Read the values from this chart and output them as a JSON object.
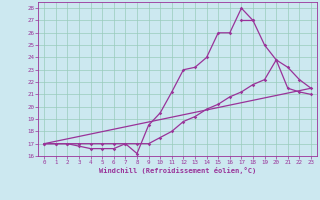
{
  "xlabel": "Windchill (Refroidissement éolien,°C)",
  "xlim": [
    -0.5,
    23.5
  ],
  "ylim": [
    16,
    28.5
  ],
  "yticks": [
    16,
    17,
    18,
    19,
    20,
    21,
    22,
    23,
    24,
    25,
    26,
    27,
    28
  ],
  "xticks": [
    0,
    1,
    2,
    3,
    4,
    5,
    6,
    7,
    8,
    9,
    10,
    11,
    12,
    13,
    14,
    15,
    16,
    17,
    18,
    19,
    20,
    21,
    22,
    23
  ],
  "bg_color": "#cce8f0",
  "line_color": "#993399",
  "grid_color": "#99ccbb",
  "line1_x": [
    0,
    1,
    2,
    3,
    4,
    5,
    6,
    7,
    8,
    9,
    10,
    11,
    12,
    13,
    14,
    15,
    16,
    17,
    18
  ],
  "line1_y": [
    17,
    17,
    17,
    16.8,
    16.6,
    16.6,
    16.6,
    17.0,
    16.2,
    18.5,
    19.5,
    21.2,
    23.0,
    23.2,
    24.0,
    26.0,
    26.0,
    28.0,
    27.0
  ],
  "line2_x": [
    0,
    23
  ],
  "line2_y": [
    17,
    21.5
  ],
  "line3_x": [
    0,
    1,
    2,
    3,
    4,
    5,
    6,
    7,
    8,
    9,
    10,
    11,
    12,
    13,
    14,
    15,
    16,
    17,
    18,
    19,
    20,
    21,
    22,
    23
  ],
  "line3_y": [
    17,
    17,
    17,
    17,
    17,
    17,
    17,
    17,
    17,
    17,
    17.5,
    18.0,
    18.8,
    19.2,
    19.8,
    20.2,
    20.8,
    21.2,
    21.8,
    22.2,
    23.8,
    21.5,
    21.2,
    21.0
  ],
  "line4_x": [
    17,
    18,
    19,
    20,
    21,
    22,
    23
  ],
  "line4_y": [
    27.0,
    27.0,
    25.0,
    23.8,
    23.2,
    22.2,
    21.5
  ]
}
